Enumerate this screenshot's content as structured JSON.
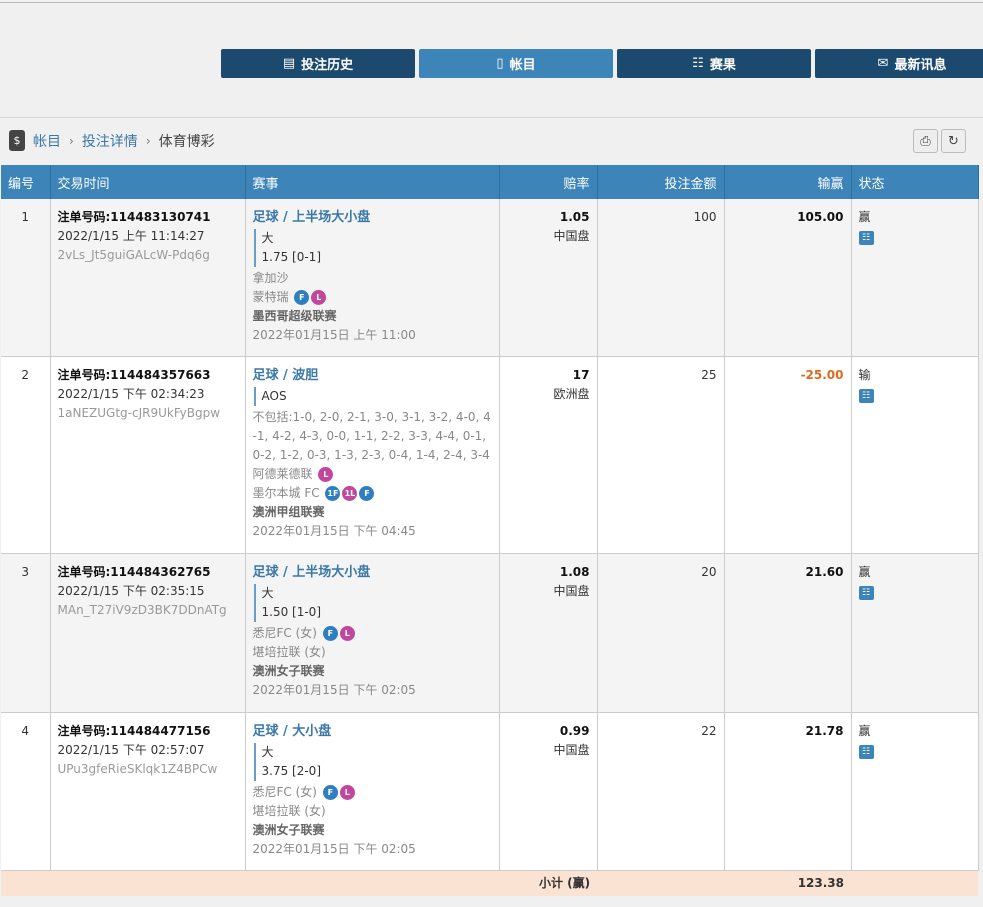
{
  "tabs": [
    {
      "label": "投注历史",
      "icon": "betslip-icon"
    },
    {
      "label": "帐目",
      "icon": "statement-icon",
      "active": true
    },
    {
      "label": "赛果",
      "icon": "results-icon"
    },
    {
      "label": "最新讯息",
      "icon": "mail-icon"
    }
  ],
  "breadcrumb": {
    "items": [
      "帐目",
      "投注详情"
    ],
    "current": "体育博彩"
  },
  "table": {
    "headers": [
      "编号",
      "交易时间",
      "赛事",
      "赔率",
      "投注金额",
      "输赢",
      "状态"
    ],
    "rows": [
      {
        "no": "1",
        "order": "注单号码:114483130741",
        "time": "2022/1/15 上午 11:14:27",
        "ref": "2vLs_Jt5guiGALcW-Pdq6g",
        "sport": "足球 / 上半场大小盘",
        "pick": "大",
        "line": "1.75  [0-1]",
        "home": "拿加沙",
        "away": "蒙特瑞",
        "league": "墨西哥超级联赛",
        "match_time": "2022年01月15日 上午 11:00",
        "odds": "1.05",
        "odds_type": "中国盘",
        "stake": "100",
        "result": "105.00",
        "status": "赢"
      },
      {
        "no": "2",
        "order": "注单号码:114484357663",
        "time": "2022/1/15 下午 02:34:23",
        "ref": "1aNEZUGtg-cJR9UkFyBgpw",
        "sport": "足球 / 波胆",
        "pick": "AOS",
        "exclude": "不包括:1-0, 2-0, 2-1, 3-0, 3-1, 3-2, 4-0, 4-1, 4-2, 4-3, 0-0, 1-1, 2-2, 3-3, 4-4, 0-1, 0-2, 1-2, 0-3, 1-3, 2-3, 0-4, 1-4, 2-4, 3-4",
        "home": "阿德莱德联",
        "away": "墨尔本城 FC",
        "league": "澳洲甲组联赛",
        "match_time": "2022年01月15日 下午 04:45",
        "odds": "17",
        "odds_type": "欧洲盘",
        "stake": "25",
        "result": "-25.00",
        "status": "输"
      },
      {
        "no": "3",
        "order": "注单号码:114484362765",
        "time": "2022/1/15 下午 02:35:15",
        "ref": "MAn_T27iV9zD3BK7DDnATg",
        "sport": "足球 / 上半场大小盘",
        "pick": "大",
        "line": "1.50  [1-0]",
        "home": "悉尼FC (女)",
        "away": "堪培拉联 (女)",
        "league": "澳洲女子联赛",
        "match_time": "2022年01月15日 下午 02:05",
        "odds": "1.08",
        "odds_type": "中国盘",
        "stake": "20",
        "result": "21.60",
        "status": "赢"
      },
      {
        "no": "4",
        "order": "注单号码:114484477156",
        "time": "2022/1/15 下午 02:57:07",
        "ref": "UPu3gfeRieSKlqk1Z4BPCw",
        "sport": "足球 / 大小盘",
        "pick": "大",
        "line": "3.75  [2-0]",
        "home": "悉尼FC (女)",
        "away": "堪培拉联 (女)",
        "league": "澳洲女子联赛",
        "match_time": "2022年01月15日 下午 02:05",
        "odds": "0.99",
        "odds_type": "中国盘",
        "stake": "22",
        "result": "21.78",
        "status": "赢"
      }
    ],
    "subtotal": {
      "label": "小计 (赢)",
      "value": "123.38"
    }
  },
  "badges": {
    "F": "F",
    "L": "L",
    "1F": "1F",
    "1L": "1L"
  },
  "colors": {
    "header": "#3d84b8",
    "tab": "#1b4a6e",
    "loss": "#e06a1a",
    "subtotal_bg": "#fbe3d3"
  }
}
